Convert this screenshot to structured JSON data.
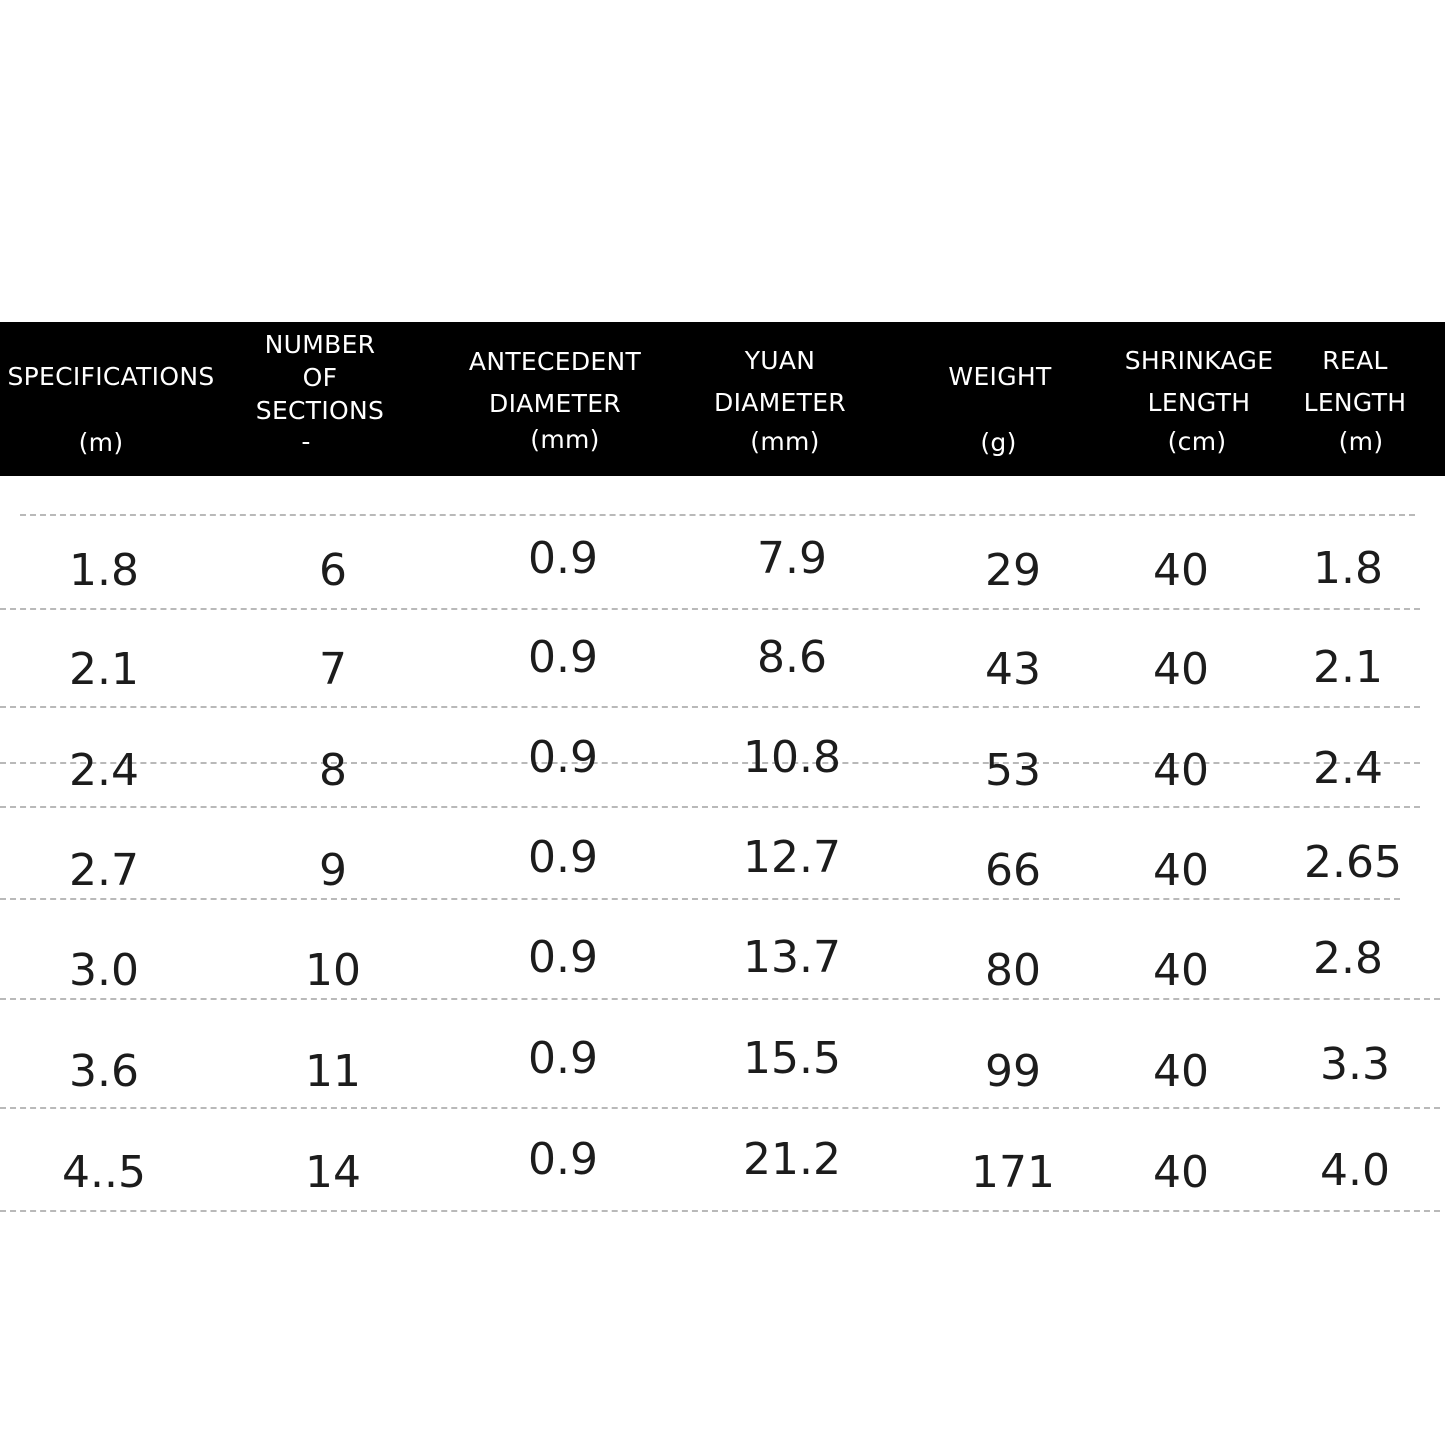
{
  "table": {
    "headers": [
      {
        "lines": [
          "SPECIFICATIONS"
        ],
        "unit": "(m)"
      },
      {
        "lines": [
          "NUMBER",
          "OF",
          "SECTIONS"
        ],
        "unit": "-"
      },
      {
        "lines": [
          "ANTECEDENT",
          "DIAMETER"
        ],
        "unit": "(mm)"
      },
      {
        "lines": [
          "YUAN",
          "DIAMETER"
        ],
        "unit": "(mm)"
      },
      {
        "lines": [
          "WEIGHT"
        ],
        "unit": "(g)"
      },
      {
        "lines": [
          "SHRINKAGE",
          "LENGTH"
        ],
        "unit": "(cm)"
      },
      {
        "lines": [
          "REAL",
          "LENGTH"
        ],
        "unit": "(m)"
      }
    ],
    "rows": [
      [
        "1.8",
        "6",
        "0.9",
        "7.9",
        "29",
        "40",
        "1.8"
      ],
      [
        "2.1",
        "7",
        "0.9",
        "8.6",
        "43",
        "40",
        "2.1"
      ],
      [
        "2.4",
        "8",
        "0.9",
        "10.8",
        "53",
        "40",
        "2.4"
      ],
      [
        "2.7",
        "9",
        "0.9",
        "12.7",
        "66",
        "40",
        "2.65"
      ],
      [
        "3.0",
        "10",
        "0.9",
        "13.7",
        "80",
        "40",
        "2.8"
      ],
      [
        "3.6",
        "11",
        "0.9",
        "15.5",
        "99",
        "40",
        "3.3"
      ],
      [
        "4..5",
        "14",
        "0.9",
        "21.2",
        "171",
        "40",
        "4.0"
      ]
    ]
  }
}
